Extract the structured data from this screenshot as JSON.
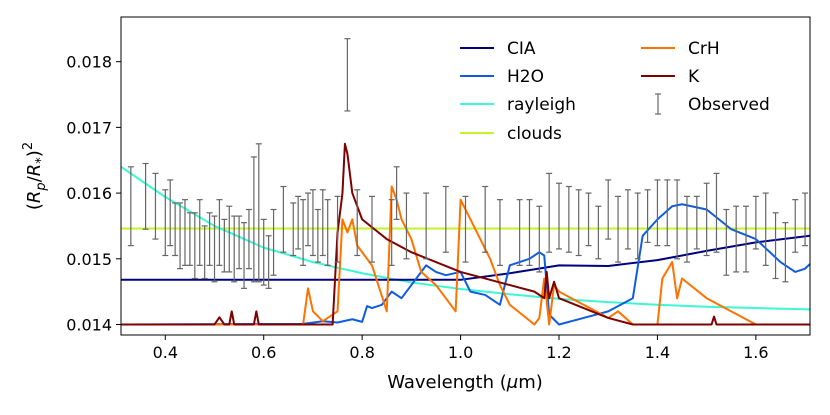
{
  "chart_data": {
    "type": "line",
    "title": "",
    "xlabel": "Wavelength (μm)",
    "xlabel_parts": {
      "pre": "Wavelength (",
      "mu": "μ",
      "post": "m)"
    },
    "ylabel": "(Rp/R*)^2",
    "ylabel_parts": {
      "open": "(",
      "R": "R",
      "p": "p",
      "slash": "/",
      "star": "*",
      "close": ")",
      "exp": "2"
    },
    "xlim": [
      0.31,
      1.71
    ],
    "ylim": [
      0.01384,
      0.01868
    ],
    "xticks": [
      0.4,
      0.6,
      0.8,
      1.0,
      1.2,
      1.4,
      1.6
    ],
    "xtick_labels": [
      "0.4",
      "0.6",
      "0.8",
      "1.0",
      "1.2",
      "1.4",
      "1.6"
    ],
    "yticks": [
      0.014,
      0.015,
      0.016,
      0.017,
      0.018
    ],
    "ytick_labels": [
      "0.014",
      "0.015",
      "0.016",
      "0.017",
      "0.018"
    ],
    "legend_position": "top-right",
    "series": [
      {
        "name": "CIA",
        "color": "#00007f",
        "x": [
          0.31,
          1.0,
          1.1,
          1.2,
          1.3,
          1.4,
          1.5,
          1.6,
          1.71
        ],
        "y": [
          0.01468,
          0.01468,
          0.01478,
          0.0149,
          0.01489,
          0.01498,
          0.01512,
          0.01525,
          0.01535
        ]
      },
      {
        "name": "H2O",
        "color": "#0f5ddf",
        "x": [
          0.31,
          0.68,
          0.72,
          0.75,
          0.78,
          0.8,
          0.81,
          0.82,
          0.84,
          0.86,
          0.88,
          0.9,
          0.93,
          0.95,
          0.97,
          1.0,
          1.02,
          1.05,
          1.08,
          1.1,
          1.12,
          1.14,
          1.16,
          1.17,
          1.18,
          1.2,
          1.25,
          1.3,
          1.35,
          1.37,
          1.4,
          1.43,
          1.45,
          1.5,
          1.55,
          1.6,
          1.65,
          1.68,
          1.7,
          1.71
        ],
        "y": [
          0.014,
          0.01401,
          0.01405,
          0.01403,
          0.01408,
          0.01404,
          0.01428,
          0.01425,
          0.0143,
          0.0145,
          0.0144,
          0.0146,
          0.0149,
          0.0148,
          0.01475,
          0.0148,
          0.0145,
          0.01445,
          0.0143,
          0.0149,
          0.01495,
          0.015,
          0.0151,
          0.01505,
          0.01415,
          0.014,
          0.0141,
          0.0142,
          0.0144,
          0.01535,
          0.0156,
          0.0158,
          0.01583,
          0.01575,
          0.01545,
          0.0153,
          0.01495,
          0.0148,
          0.01485,
          0.01492
        ]
      },
      {
        "name": "rayleigh",
        "color": "#3cf7d2",
        "x": [
          0.31,
          0.4,
          0.5,
          0.6,
          0.7,
          0.8,
          0.9,
          1.0,
          1.1,
          1.2,
          1.3,
          1.4,
          1.5,
          1.6,
          1.71
        ],
        "y": [
          0.0164,
          0.01594,
          0.0155,
          0.01517,
          0.01495,
          0.01478,
          0.01464,
          0.01454,
          0.01446,
          0.01439,
          0.01434,
          0.0143,
          0.01427,
          0.01425,
          0.01423
        ]
      },
      {
        "name": "clouds",
        "color": "#c3f42a",
        "x": [
          0.31,
          1.71
        ],
        "y": [
          0.01546,
          0.01546
        ]
      },
      {
        "name": "CrH",
        "color": "#ff7200",
        "x": [
          0.31,
          0.68,
          0.69,
          0.7,
          0.72,
          0.75,
          0.76,
          0.77,
          0.78,
          0.79,
          0.8,
          0.82,
          0.85,
          0.86,
          0.87,
          0.88,
          0.9,
          0.92,
          0.95,
          0.97,
          0.99,
          1.0,
          1.02,
          1.04,
          1.06,
          1.08,
          1.1,
          1.15,
          1.16,
          1.17,
          1.18,
          1.19,
          1.2,
          1.25,
          1.3,
          1.32,
          1.35,
          1.4,
          1.41,
          1.43,
          1.44,
          1.45,
          1.5,
          1.55,
          1.6,
          1.71
        ],
        "y": [
          0.014,
          0.014,
          0.01455,
          0.0142,
          0.01405,
          0.0142,
          0.0156,
          0.0154,
          0.0156,
          0.0152,
          0.0151,
          0.0149,
          0.0142,
          0.0161,
          0.0159,
          0.0156,
          0.0153,
          0.0148,
          0.0146,
          0.0144,
          0.0142,
          0.0159,
          0.0156,
          0.0153,
          0.015,
          0.0146,
          0.0143,
          0.014,
          0.0141,
          0.0147,
          0.014,
          0.0146,
          0.0145,
          0.0143,
          0.0141,
          0.0142,
          0.014,
          0.014,
          0.0147,
          0.01495,
          0.0144,
          0.0147,
          0.0144,
          0.0142,
          0.014,
          0.014
        ]
      },
      {
        "name": "K",
        "color": "#7f0000",
        "x": [
          0.31,
          0.5,
          0.51,
          0.52,
          0.53,
          0.535,
          0.54,
          0.58,
          0.585,
          0.59,
          0.74,
          0.75,
          0.76,
          0.765,
          0.77,
          0.78,
          0.8,
          0.85,
          0.9,
          1.0,
          1.1,
          1.15,
          1.17,
          1.175,
          1.18,
          1.19,
          1.2,
          1.25,
          1.3,
          1.35,
          1.51,
          1.515,
          1.52,
          1.71
        ],
        "y": [
          0.014,
          0.014,
          0.01411,
          0.014,
          0.014,
          0.0142,
          0.014,
          0.014,
          0.0142,
          0.014,
          0.014,
          0.0154,
          0.016,
          0.01675,
          0.0166,
          0.016,
          0.0156,
          0.0153,
          0.0151,
          0.0148,
          0.0146,
          0.0145,
          0.0144,
          0.0148,
          0.0144,
          0.01465,
          0.0144,
          0.01425,
          0.0141,
          0.014,
          0.014,
          0.01412,
          0.014,
          0.014
        ]
      }
    ],
    "observed": {
      "name": "Observed",
      "color": "#666666",
      "x": [
        0.33,
        0.36,
        0.38,
        0.4,
        0.41,
        0.42,
        0.43,
        0.44,
        0.45,
        0.46,
        0.47,
        0.48,
        0.49,
        0.5,
        0.51,
        0.52,
        0.53,
        0.54,
        0.55,
        0.56,
        0.57,
        0.58,
        0.59,
        0.6,
        0.61,
        0.62,
        0.64,
        0.66,
        0.67,
        0.68,
        0.69,
        0.7,
        0.71,
        0.72,
        0.73,
        0.75,
        0.77,
        0.79,
        0.82,
        0.86,
        0.87,
        0.89,
        0.93,
        0.97,
        1.01,
        1.05,
        1.08,
        1.12,
        1.14,
        1.16,
        1.18,
        1.2,
        1.22,
        1.24,
        1.26,
        1.28,
        1.3,
        1.32,
        1.34,
        1.36,
        1.38,
        1.4,
        1.42,
        1.44,
        1.46,
        1.48,
        1.5,
        1.52,
        1.54,
        1.56,
        1.58,
        1.6,
        1.62,
        1.64,
        1.66,
        1.68,
        1.7
      ],
      "y": [
        0.0158,
        0.01595,
        0.0158,
        0.01555,
        0.0157,
        0.01545,
        0.01535,
        0.0154,
        0.0153,
        0.0152,
        0.0154,
        0.0151,
        0.0153,
        0.01515,
        0.0154,
        0.0152,
        0.0153,
        0.01515,
        0.01525,
        0.01505,
        0.0153,
        0.0156,
        0.0157,
        0.0151,
        0.01495,
        0.01525,
        0.0156,
        0.01545,
        0.01555,
        0.0154,
        0.0156,
        0.01555,
        0.01535,
        0.01555,
        0.0154,
        0.01545,
        0.0178,
        0.01555,
        0.01545,
        0.0154,
        0.016,
        0.0155,
        0.0155,
        0.0156,
        0.01545,
        0.0156,
        0.0154,
        0.0154,
        0.0154,
        0.0153,
        0.0157,
        0.01565,
        0.0156,
        0.01555,
        0.0156,
        0.0154,
        0.01575,
        0.01545,
        0.0156,
        0.0155,
        0.01565,
        0.0157,
        0.0157,
        0.0156,
        0.01545,
        0.01555,
        0.0156,
        0.0157,
        0.01525,
        0.0153,
        0.0153,
        0.01555,
        0.01545,
        0.0152,
        0.0151,
        0.0155,
        0.0156
      ],
      "err": [
        0.0006,
        0.0005,
        0.0005,
        0.0005,
        0.0005,
        0.0004,
        0.0005,
        0.0005,
        0.0004,
        0.0005,
        0.0005,
        0.0004,
        0.0004,
        0.0005,
        0.0005,
        0.0004,
        0.0005,
        0.0005,
        0.0004,
        0.0005,
        0.00045,
        0.00095,
        0.00105,
        0.0005,
        0.0004,
        0.0005,
        0.0005,
        0.0004,
        0.0004,
        0.0005,
        0.0004,
        0.0005,
        0.0004,
        0.0005,
        0.0005,
        0.0005,
        0.00055,
        0.0005,
        0.0005,
        0.0005,
        0.0004,
        0.0005,
        0.0005,
        0.0005,
        0.0005,
        0.0005,
        0.0005,
        0.0005,
        0.0005,
        0.0005,
        0.0006,
        0.0005,
        0.0005,
        0.0005,
        0.0004,
        0.0004,
        0.00045,
        0.0005,
        0.00045,
        0.0005,
        0.0004,
        0.0005,
        0.0005,
        0.0006,
        0.0005,
        0.0004,
        0.00055,
        0.0006,
        0.0005,
        0.0005,
        0.0005,
        0.0004,
        0.00055,
        0.0005,
        0.00045,
        0.0004,
        0.0004
      ]
    }
  }
}
